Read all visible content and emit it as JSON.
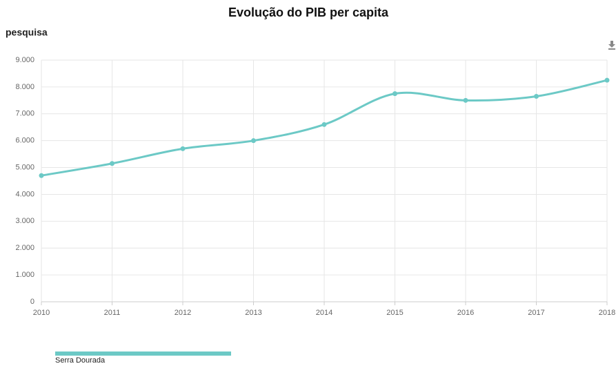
{
  "chart_data": {
    "type": "line",
    "title": "Evolução do PIB per capita",
    "subtitle": "pesquisa",
    "x": [
      2010,
      2011,
      2012,
      2013,
      2014,
      2015,
      2016,
      2017,
      2018
    ],
    "series": [
      {
        "name": "Serra Dourada",
        "color": "#6cc9c6",
        "values": [
          4700,
          5150,
          5700,
          6000,
          6600,
          7750,
          7500,
          7650,
          8250
        ]
      }
    ],
    "xlim": [
      2010,
      2018
    ],
    "xticks": [
      2010,
      2011,
      2012,
      2013,
      2014,
      2015,
      2016,
      2017,
      2018
    ],
    "ylim": [
      0,
      9000
    ],
    "yticks": [
      0,
      {
        "value": 1000,
        "label": "1.000"
      },
      {
        "value": 2000,
        "label": "2.000"
      },
      {
        "value": 3000,
        "label": "3.000"
      },
      {
        "value": 4000,
        "label": "4.000"
      },
      {
        "value": 5000,
        "label": "5.000"
      },
      {
        "value": 6000,
        "label": "6.000"
      },
      {
        "value": 7000,
        "label": "7.000"
      },
      {
        "value": 8000,
        "label": "8.000"
      },
      {
        "value": 9000,
        "label": "9.000"
      }
    ],
    "grid": true,
    "legend": "bottom-left"
  }
}
